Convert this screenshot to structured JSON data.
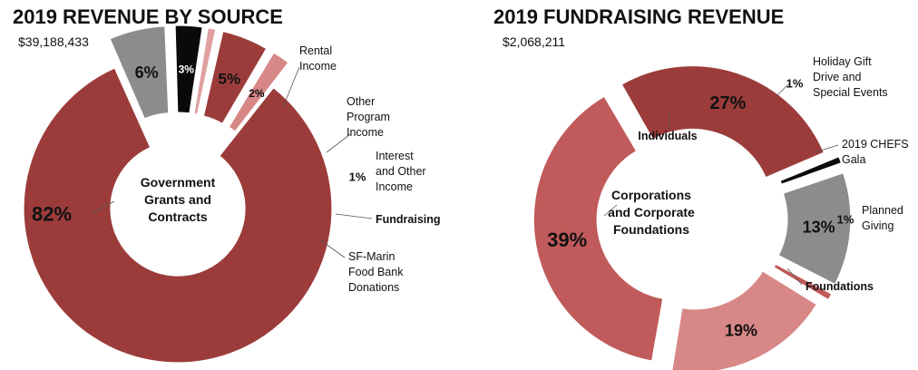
{
  "colors": {
    "dark_red": "#9b3c3b",
    "rose": "#c15a5a",
    "light_rose": "#d88787",
    "pink": "#e0a0a0",
    "gray": "#8c8c8c",
    "black": "#0a0a0a"
  },
  "chart_data": [
    {
      "type": "pie",
      "title": "2019 REVENUE BY SOURCE",
      "subtitle": "$39,188,433",
      "center_label": [
        "Government",
        "Grants and",
        "Contracts"
      ],
      "slices": [
        {
          "name": "Government Grants and Contracts",
          "value": 82,
          "pct_label": "82%",
          "color": "#9b3c3b"
        },
        {
          "name": "Rental Income",
          "value": 6,
          "pct_label": "6%",
          "color": "#8c8c8c",
          "callout": [
            "Rental",
            "Income"
          ]
        },
        {
          "name": "Other Program Income",
          "value": 3,
          "pct_label": "3%",
          "color": "#0a0a0a",
          "callout": [
            "Other",
            "Program",
            "Income"
          ]
        },
        {
          "name": "Interest and Other Income",
          "value": 1,
          "pct_label": "1%",
          "color": "#e0a0a0",
          "callout": [
            "Interest",
            "and Other",
            "Income"
          ]
        },
        {
          "name": "Fundraising",
          "value": 5,
          "pct_label": "5%",
          "color": "#9b3c3b",
          "callout": [
            "Fundraising"
          ]
        },
        {
          "name": "SF-Marin Food Bank Donations",
          "value": 2,
          "pct_label": "2%",
          "color": "#d88787",
          "callout": [
            "SF-Marin",
            "Food Bank",
            "Donations"
          ]
        }
      ]
    },
    {
      "type": "pie",
      "title": "2019 FUNDRAISING REVENUE",
      "subtitle": "$2,068,211",
      "center_label": [
        "Corporations",
        "and Corporate",
        "Foundations"
      ],
      "slices": [
        {
          "name": "Individuals",
          "value": 27,
          "pct_label": "27%",
          "color": "#9b3c3b",
          "callout": [
            "Individuals"
          ]
        },
        {
          "name": "Holiday Gift Drive and Special Events",
          "value": 1,
          "pct_label": "1%",
          "color": "#0a0a0a",
          "callout": [
            "Holiday Gift",
            "Drive and",
            "Special Events"
          ]
        },
        {
          "name": "2019 CHEFS Gala",
          "value": 13,
          "pct_label": "13%",
          "color": "#8c8c8c",
          "callout": [
            "2019 CHEFS",
            "Gala"
          ]
        },
        {
          "name": "Planned Giving",
          "value": 1,
          "pct_label": "1%",
          "color": "#c15a5a",
          "callout": [
            "Planned",
            "Giving"
          ]
        },
        {
          "name": "Foundations",
          "value": 19,
          "pct_label": "19%",
          "color": "#d88787",
          "callout": [
            "Foundations"
          ]
        },
        {
          "name": "Corporations and Corporate Foundations",
          "value": 39,
          "pct_label": "39%",
          "color": "#c15a5a"
        }
      ]
    }
  ]
}
